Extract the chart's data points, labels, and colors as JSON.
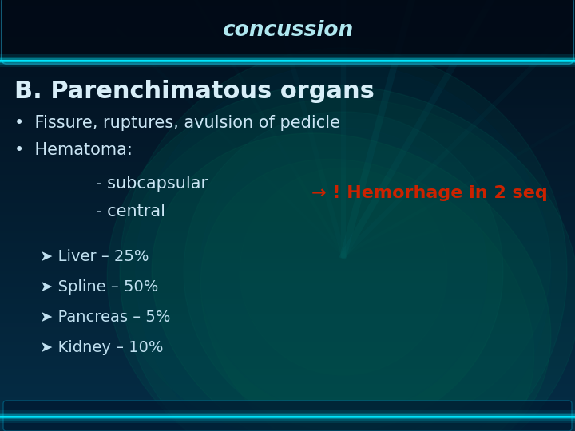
{
  "title": "concussion",
  "heading": "B. Parenchimatous organs",
  "bullet1": "•  Fissure, ruptures, avulsion of pedicle",
  "bullet2": "•  Hematoma:",
  "sub1": "- subcapsular",
  "sub2": "- central",
  "arrow_text": "→ ! Hemorhage in 2 seq",
  "chevrons": [
    "➤ Liver – 25%",
    "➤ Spline – 50%",
    "➤ Pancreas – 5%",
    "➤ Kidney – 10%"
  ],
  "bg_dark": "#020e1c",
  "bg_mid": "#04213a",
  "bg_light_center": "#063d5c",
  "heading_color": "#d8eef8",
  "body_color": "#cce6f5",
  "arrow_color": "#cc2200",
  "title_color": "#b0e8f0",
  "bar_color": "#00e8ff",
  "chevron_color": "#c0e0f0",
  "panel_dark": "#010a16",
  "panel_border": "#1a7a9a"
}
